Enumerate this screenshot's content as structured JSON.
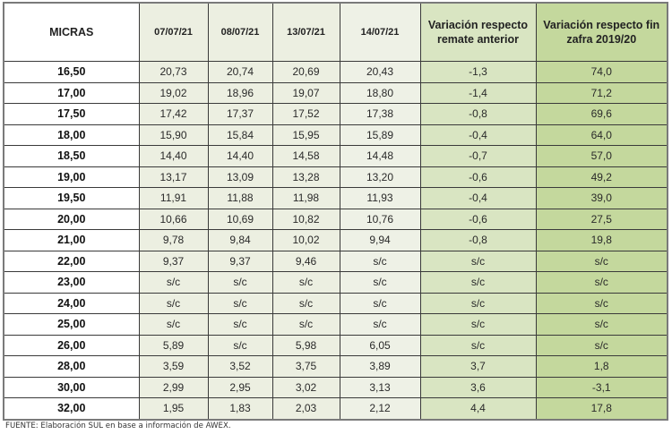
{
  "table": {
    "headers": {
      "micras": "MICRAS",
      "dates": [
        "07/07/21",
        "08/07/21",
        "13/07/21",
        "14/07/21"
      ],
      "variation_previous": "Variación respecto remate anterior",
      "variation_season": "Variación respecto fin zafra 2019/20"
    },
    "rows": [
      {
        "micras": "16,50",
        "d1": "20,73",
        "d2": "20,74",
        "d3": "20,69",
        "d4": "20,43",
        "v1": "-1,3",
        "v2": "74,0"
      },
      {
        "micras": "17,00",
        "d1": "19,02",
        "d2": "18,96",
        "d3": "19,07",
        "d4": "18,80",
        "v1": "-1,4",
        "v2": "71,2"
      },
      {
        "micras": "17,50",
        "d1": "17,42",
        "d2": "17,37",
        "d3": "17,52",
        "d4": "17,38",
        "v1": "-0,8",
        "v2": "69,6"
      },
      {
        "micras": "18,00",
        "d1": "15,90",
        "d2": "15,84",
        "d3": "15,95",
        "d4": "15,89",
        "v1": "-0,4",
        "v2": "64,0"
      },
      {
        "micras": "18,50",
        "d1": "14,40",
        "d2": "14,40",
        "d3": "14,58",
        "d4": "14,48",
        "v1": "-0,7",
        "v2": "57,0"
      },
      {
        "micras": "19,00",
        "d1": "13,17",
        "d2": "13,09",
        "d3": "13,28",
        "d4": "13,20",
        "v1": "-0,6",
        "v2": "49,2"
      },
      {
        "micras": "19,50",
        "d1": "11,91",
        "d2": "11,88",
        "d3": "11,98",
        "d4": "11,93",
        "v1": "-0,4",
        "v2": "39,0"
      },
      {
        "micras": "20,00",
        "d1": "10,66",
        "d2": "10,69",
        "d3": "10,82",
        "d4": "10,76",
        "v1": "-0,6",
        "v2": "27,5"
      },
      {
        "micras": "21,00",
        "d1": "9,78",
        "d2": "9,84",
        "d3": "10,02",
        "d4": "9,94",
        "v1": "-0,8",
        "v2": "19,8"
      },
      {
        "micras": "22,00",
        "d1": "9,37",
        "d2": "9,37",
        "d3": "9,46",
        "d4": "s/c",
        "v1": "s/c",
        "v2": "s/c"
      },
      {
        "micras": "23,00",
        "d1": "s/c",
        "d2": "s/c",
        "d3": "s/c",
        "d4": "s/c",
        "v1": "s/c",
        "v2": "s/c"
      },
      {
        "micras": "24,00",
        "d1": "s/c",
        "d2": "s/c",
        "d3": "s/c",
        "d4": "s/c",
        "v1": "s/c",
        "v2": "s/c"
      },
      {
        "micras": "25,00",
        "d1": "s/c",
        "d2": "s/c",
        "d3": "s/c",
        "d4": "s/c",
        "v1": "s/c",
        "v2": "s/c"
      },
      {
        "micras": "26,00",
        "d1": "5,89",
        "d2": "s/c",
        "d3": "5,98",
        "d4": "6,05",
        "v1": "s/c",
        "v2": "s/c"
      },
      {
        "micras": "28,00",
        "d1": "3,59",
        "d2": "3,52",
        "d3": "3,75",
        "d4": "3,89",
        "v1": "3,7",
        "v2": "1,8"
      },
      {
        "micras": "30,00",
        "d1": "2,99",
        "d2": "2,95",
        "d3": "3,02",
        "d4": "3,13",
        "v1": "3,6",
        "v2": "-3,1"
      },
      {
        "micras": "32,00",
        "d1": "1,95",
        "d2": "1,83",
        "d3": "2,03",
        "d4": "2,12",
        "v1": "4,4",
        "v2": "17,8"
      }
    ]
  },
  "source_note": "FUENTE: Elaboración SUL en base a información de AWEX.",
  "colors": {
    "date_columns_bg": "#ecefe1",
    "variation_previous_bg": "#d9e5c2",
    "variation_season_bg": "#c4d89d",
    "border": "#3a3a3a"
  }
}
